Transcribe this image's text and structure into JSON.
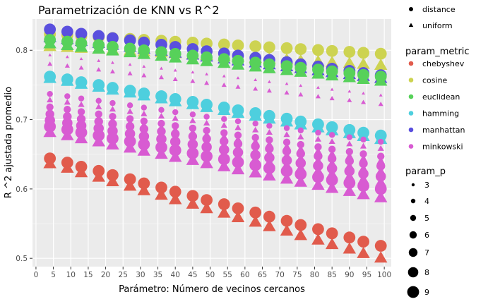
{
  "chart_data": {
    "type": "scatter",
    "title": "Parametrización de KNN vs R^2",
    "xlabel": "Parámetro: Número de vecinos cercanos",
    "ylabel": "R ^2 ajustada promedio",
    "xlim": [
      -1,
      102
    ],
    "ylim": [
      0.488,
      0.845
    ],
    "xticks": [
      0,
      5,
      10,
      15,
      20,
      25,
      30,
      35,
      40,
      45,
      50,
      55,
      60,
      65,
      70,
      75,
      80,
      85,
      90,
      95,
      100
    ],
    "yticks": [
      0.5,
      0.6,
      0.7,
      0.8
    ],
    "x": [
      4,
      9,
      13,
      18,
      22,
      27,
      31,
      36,
      40,
      45,
      49,
      54,
      58,
      63,
      67,
      72,
      76,
      81,
      85,
      90,
      94,
      99
    ],
    "grid": true,
    "background": "#ebebeb",
    "shape_legend": {
      "title": "",
      "entries": [
        {
          "label": "distance",
          "shape": "circle"
        },
        {
          "label": "uniform",
          "shape": "triangle"
        }
      ]
    },
    "color_legend": {
      "title": "param_metric",
      "entries": [
        {
          "label": "chebyshev",
          "color": "#e15b4c"
        },
        {
          "label": "cosine",
          "color": "#cdd351"
        },
        {
          "label": "euclidean",
          "color": "#57d15a"
        },
        {
          "label": "hamming",
          "color": "#4ecfde"
        },
        {
          "label": "manhattan",
          "color": "#5a4fde"
        },
        {
          "label": "minkowski",
          "color": "#d85bd2"
        }
      ]
    },
    "size_legend": {
      "title": "param_p",
      "entries": [
        {
          "label": "3",
          "radius": 2.2
        },
        {
          "label": "4",
          "radius": 3.2
        },
        {
          "label": "5",
          "radius": 4.2
        },
        {
          "label": "6",
          "radius": 5.2
        },
        {
          "label": "7",
          "radius": 6.2
        },
        {
          "label": "8",
          "radius": 7.3
        },
        {
          "label": "9",
          "radius": 8.4
        }
      ]
    },
    "series": [
      {
        "metric": "cosine",
        "weights": "distance",
        "p": 9,
        "y_start": 0.823,
        "y_end": 0.795
      },
      {
        "metric": "cosine",
        "weights": "uniform",
        "p": 9,
        "y_start": 0.805,
        "y_end": 0.778
      },
      {
        "metric": "manhattan",
        "weights": "distance",
        "p": 9,
        "y_start": 0.83,
        "y_end": 0.764
      },
      {
        "metric": "manhattan",
        "weights": "uniform",
        "p": 9,
        "y_start": 0.818,
        "y_end": 0.759
      },
      {
        "metric": "euclidean",
        "weights": "distance",
        "p": 9,
        "y_start": 0.815,
        "y_end": 0.762
      },
      {
        "metric": "euclidean",
        "weights": "uniform",
        "p": 9,
        "y_start": 0.809,
        "y_end": 0.755
      },
      {
        "metric": "hamming",
        "weights": "distance",
        "p": 9,
        "y_start": 0.762,
        "y_end": 0.677
      },
      {
        "metric": "hamming",
        "weights": "uniform",
        "p": 9,
        "y_start": 0.759,
        "y_end": 0.671
      },
      {
        "metric": "chebyshev",
        "weights": "distance",
        "p": 9,
        "y_start": 0.644,
        "y_end": 0.518
      },
      {
        "metric": "chebyshev",
        "weights": "uniform",
        "p": 9,
        "y_start": 0.636,
        "y_end": 0.5
      },
      {
        "metric": "minkowski",
        "weights": "uniform",
        "p": 3,
        "y_start": 0.793,
        "y_end": 0.735
      },
      {
        "metric": "minkowski",
        "weights": "uniform",
        "p": 4,
        "y_start": 0.78,
        "y_end": 0.722
      },
      {
        "metric": "minkowski",
        "weights": "distance",
        "p": 5,
        "y_start": 0.737,
        "y_end": 0.668
      },
      {
        "metric": "minkowski",
        "weights": "uniform",
        "p": 5,
        "y_start": 0.728,
        "y_end": 0.658
      },
      {
        "metric": "minkowski",
        "weights": "distance",
        "p": 6,
        "y_start": 0.718,
        "y_end": 0.647
      },
      {
        "metric": "minkowski",
        "weights": "uniform",
        "p": 6,
        "y_start": 0.712,
        "y_end": 0.64
      },
      {
        "metric": "minkowski",
        "weights": "distance",
        "p": 7,
        "y_start": 0.708,
        "y_end": 0.633
      },
      {
        "metric": "minkowski",
        "weights": "uniform",
        "p": 7,
        "y_start": 0.702,
        "y_end": 0.625
      },
      {
        "metric": "minkowski",
        "weights": "distance",
        "p": 8,
        "y_start": 0.699,
        "y_end": 0.618
      },
      {
        "metric": "minkowski",
        "weights": "uniform",
        "p": 8,
        "y_start": 0.693,
        "y_end": 0.609
      },
      {
        "metric": "minkowski",
        "weights": "distance",
        "p": 9,
        "y_start": 0.69,
        "y_end": 0.6
      },
      {
        "metric": "minkowski",
        "weights": "uniform",
        "p": 9,
        "y_start": 0.681,
        "y_end": 0.587
      }
    ]
  }
}
